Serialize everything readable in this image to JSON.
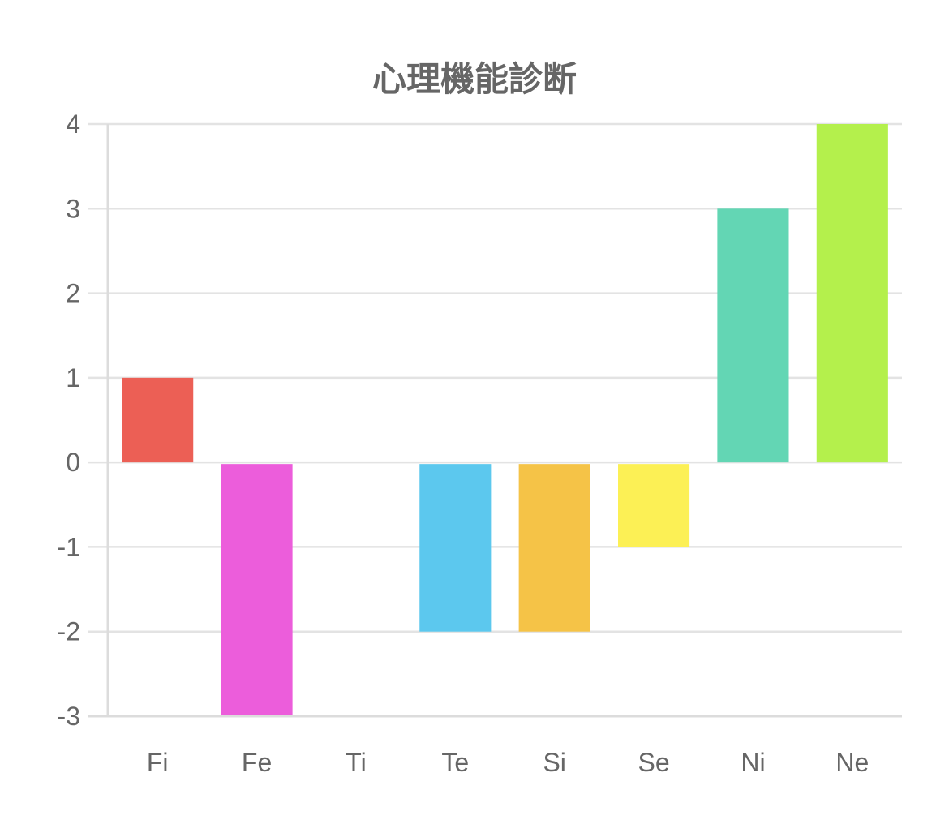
{
  "chart_data": {
    "type": "bar",
    "title": "心理機能診断",
    "categories": [
      "Fi",
      "Fe",
      "Ti",
      "Te",
      "Si",
      "Se",
      "Ni",
      "Ne"
    ],
    "values": [
      1,
      -3,
      0,
      -2,
      -2,
      -1,
      3,
      4
    ],
    "colors": [
      "#ec5f55",
      "#ec5ddb",
      "#cccccc",
      "#5cc8ee",
      "#f5c347",
      "#fcf055",
      "#63d6b4",
      "#b4f04c"
    ],
    "yticks": [
      4,
      3,
      2,
      1,
      0,
      -1,
      -2,
      -3
    ],
    "ylim": [
      -3,
      4
    ],
    "xlabel": "",
    "ylabel": "",
    "grid": true,
    "legend": "none"
  }
}
